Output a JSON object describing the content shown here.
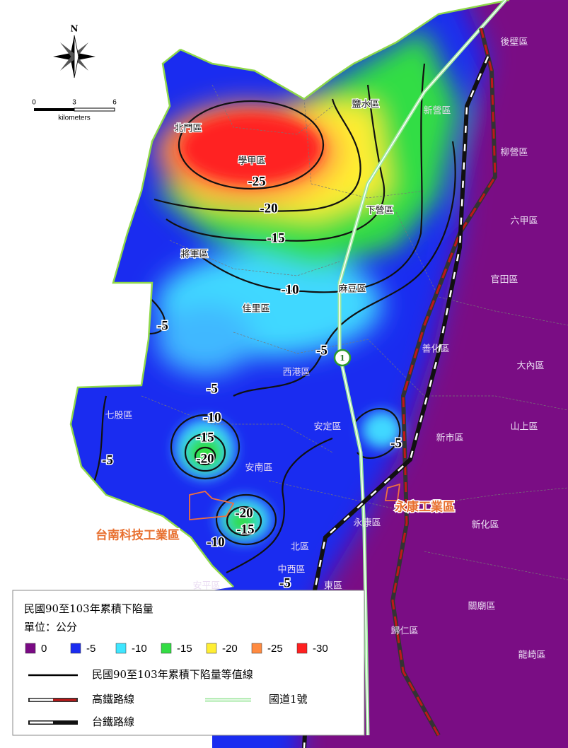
{
  "north_label": "N",
  "scale_bar": {
    "ticks": [
      0,
      3,
      6
    ],
    "unit": "kilometers"
  },
  "highway_marker": "1",
  "districts": [
    "後壁區",
    "鹽水區",
    "新營區",
    "北門區",
    "學甲區",
    "柳營區",
    "下營區",
    "六甲區",
    "將軍區",
    "官田區",
    "麻豆區",
    "佳里區",
    "善化區",
    "大內區",
    "西港區",
    "七股區",
    "安定區",
    "山上區",
    "新市區",
    "安南區",
    "永康區",
    "新化區",
    "北區",
    "中西區",
    "安平區",
    "東區",
    "關廟區",
    "歸仁區",
    "龍崎區"
  ],
  "contour_labels": [
    -25,
    -20,
    -15,
    -10,
    -5,
    -5,
    -5,
    -10,
    -15,
    -20,
    -5,
    -5,
    -20,
    -15,
    -10,
    -5
  ],
  "annotations": [
    "永康工業區",
    "台南科技工業區"
  ],
  "legend": {
    "title": "民國90至103年累積下陷量",
    "unit": "單位：公分",
    "classes": [
      {
        "value": 0,
        "color": "#7a0a84"
      },
      {
        "value": -5,
        "color": "#1a2cf0"
      },
      {
        "value": -10,
        "color": "#3fe6ff"
      },
      {
        "value": -15,
        "color": "#33dd44"
      },
      {
        "value": -20,
        "color": "#ffee33"
      },
      {
        "value": -25,
        "color": "#ff8a40"
      },
      {
        "value": -30,
        "color": "#ff2020"
      }
    ],
    "lines": [
      "民國90至103年累積下陷量等值線",
      "高鐵路線",
      "國道1號",
      "台鐵路線"
    ]
  }
}
